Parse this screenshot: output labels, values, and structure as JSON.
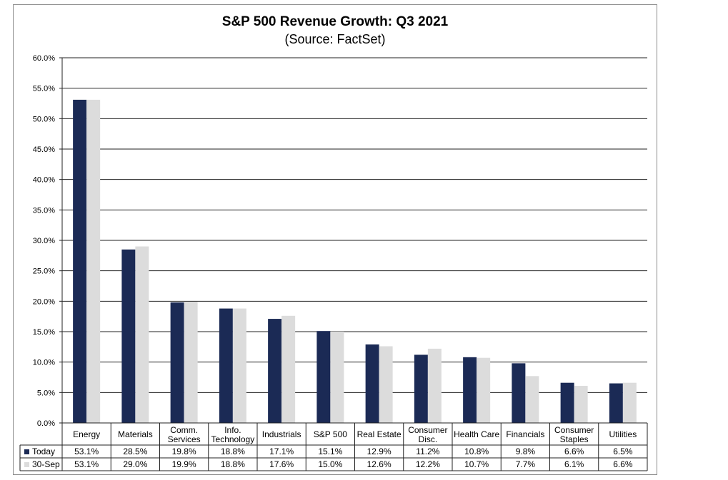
{
  "chart_data": {
    "type": "bar",
    "title": "S&P 500 Revenue Growth: Q3 2021",
    "subtitle": "(Source: FactSet)",
    "categories": [
      [
        "Energy"
      ],
      [
        "Materials"
      ],
      [
        "Comm.",
        "Services"
      ],
      [
        "Info.",
        "Technology"
      ],
      [
        "Industrials"
      ],
      [
        "S&P 500"
      ],
      [
        "Real Estate"
      ],
      [
        "Consumer",
        "Disc."
      ],
      [
        "Health Care"
      ],
      [
        "Financials"
      ],
      [
        "Consumer",
        "Staples"
      ],
      [
        "Utilities"
      ]
    ],
    "ylim": [
      0,
      60
    ],
    "yticks": [
      0,
      5,
      10,
      15,
      20,
      25,
      30,
      35,
      40,
      45,
      50,
      55,
      60
    ],
    "ytick_labels": [
      "0.0%",
      "5.0%",
      "10.0%",
      "15.0%",
      "20.0%",
      "25.0%",
      "30.0%",
      "35.0%",
      "40.0%",
      "45.0%",
      "50.0%",
      "55.0%",
      "60.0%"
    ],
    "grid": true,
    "series": [
      {
        "name": "Today",
        "color": "#1b2a55",
        "values": [
          53.1,
          28.5,
          19.8,
          18.8,
          17.1,
          15.1,
          12.9,
          11.2,
          10.8,
          9.8,
          6.6,
          6.5
        ],
        "labels": [
          "53.1%",
          "28.5%",
          "19.8%",
          "18.8%",
          "17.1%",
          "15.1%",
          "12.9%",
          "11.2%",
          "10.8%",
          "9.8%",
          "6.6%",
          "6.5%"
        ]
      },
      {
        "name": "30-Sep",
        "color": "#dcdcdc",
        "values": [
          53.1,
          29.0,
          19.9,
          18.8,
          17.6,
          15.0,
          12.6,
          12.2,
          10.7,
          7.7,
          6.1,
          6.6
        ],
        "labels": [
          "53.1%",
          "29.0%",
          "19.9%",
          "18.8%",
          "17.6%",
          "15.0%",
          "12.6%",
          "12.2%",
          "10.7%",
          "7.7%",
          "6.1%",
          "6.6%"
        ]
      }
    ]
  }
}
